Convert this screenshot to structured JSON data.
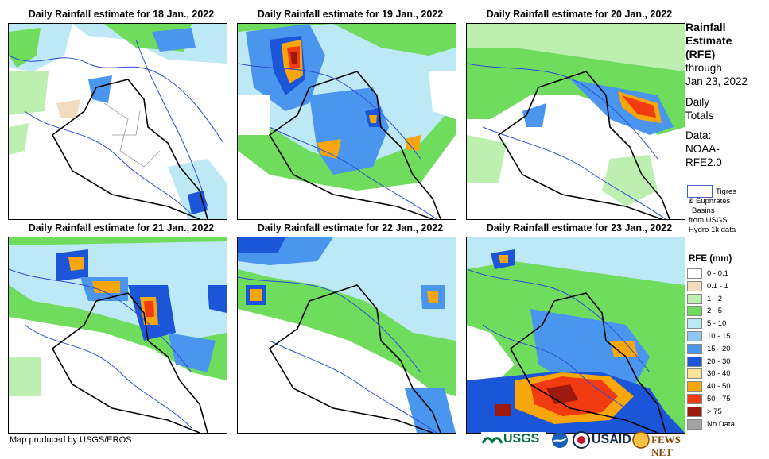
{
  "panels": [
    {
      "title": "Daily Rainfall estimate for 18 Jan., 2022"
    },
    {
      "title": "Daily Rainfall estimate for 19 Jan., 2022"
    },
    {
      "title": "Daily Rainfall estimate for 20 Jan., 2022"
    },
    {
      "title": "Daily Rainfall estimate for 21 Jan., 2022"
    },
    {
      "title": "Daily Rainfall estimate for 22 Jan., 2022"
    },
    {
      "title": "Daily Rainfall estimate for 23 Jan., 2022"
    }
  ],
  "legend": {
    "title_lines": [
      "Rainfall",
      "Estimate",
      "(RFE)"
    ],
    "through": "through",
    "date": "Jan 23, 2022",
    "daily_lines": [
      "Daily",
      "Totals"
    ],
    "data_lines": [
      "Data:",
      "NOAA-",
      "RFE2.0"
    ],
    "basin_lines": [
      "Tigres",
      "& Euphrates",
      "Basins",
      "from USGS",
      "Hydro 1k data"
    ],
    "rfe_title": "RFE (mm)",
    "classes": [
      {
        "label": "0 - 0.1",
        "color": "#ffffff"
      },
      {
        "label": "0.1 - 1",
        "color": "#f2dcc0"
      },
      {
        "label": "1 - 2",
        "color": "#bdf0b0"
      },
      {
        "label": "2 - 5",
        "color": "#6fdc5e"
      },
      {
        "label": "5 - 10",
        "color": "#bde8f6"
      },
      {
        "label": "10 - 15",
        "color": "#8ec7f4"
      },
      {
        "label": "15 - 20",
        "color": "#4a95ee"
      },
      {
        "label": "20 - 30",
        "color": "#1b55d8"
      },
      {
        "label": "30 - 40",
        "color": "#fce396"
      },
      {
        "label": "40 - 50",
        "color": "#f9a50c"
      },
      {
        "label": "50 - 75",
        "color": "#f23b10"
      },
      {
        "label": "> 75",
        "color": "#9e1a10"
      },
      {
        "label": "No Data",
        "color": "#a3a3a3"
      }
    ]
  },
  "credit": "Map produced by USGS/EROS",
  "logos": {
    "usgs": "USGS",
    "usaid": "USAID",
    "fews": "FEWS NET"
  }
}
